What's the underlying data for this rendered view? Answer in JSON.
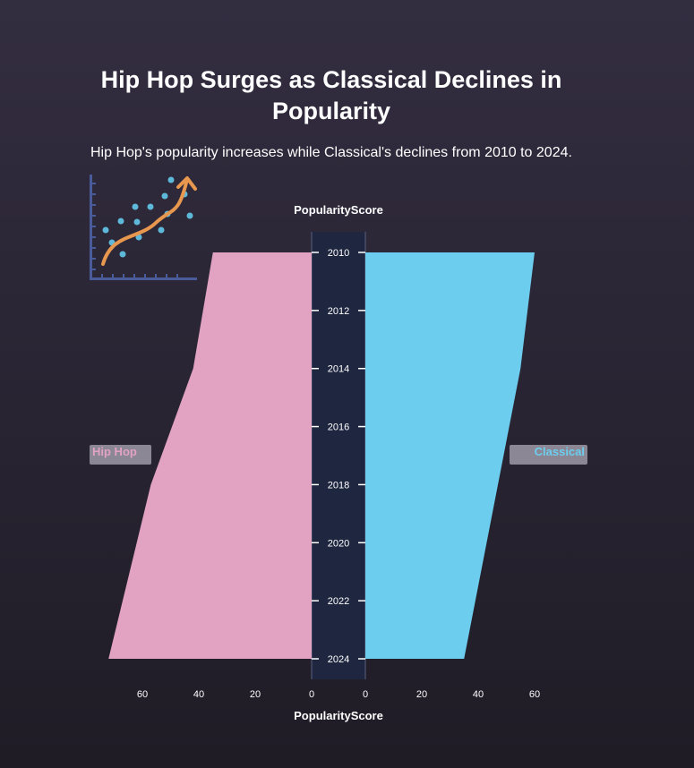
{
  "page": {
    "title": "Hip Hop Surges as Classical Declines in Popularity",
    "subtitle": "Hip Hop's popularity increases while Classical's declines from 2010 to 2024.",
    "icon": "scatter-trend-arrow-icon"
  },
  "colors": {
    "hip_hop": "#e2a2c2",
    "classical": "#6dcdee",
    "center_band": "#1f2640",
    "icon_axes": "#4a5b9a",
    "icon_dots": "#5eb8d9",
    "icon_curve": "#e8974f"
  },
  "chart_data": {
    "type": "area",
    "layout": "mirrored-pyramid",
    "years": [
      "2010",
      "2012",
      "2014",
      "2016",
      "2018",
      "2020",
      "2022",
      "2024"
    ],
    "series": [
      {
        "name": "Hip Hop",
        "side": "left",
        "x": [
          2010,
          2014,
          2018,
          2024
        ],
        "values": [
          35,
          42,
          57,
          72
        ]
      },
      {
        "name": "Classical",
        "side": "right",
        "x": [
          2010,
          2014,
          2024
        ],
        "values": [
          60,
          55,
          35
        ]
      }
    ],
    "xlabel_top": "PopularityScore",
    "xlabel_bottom": "PopularityScore",
    "left_axis_ticks": [
      60,
      40,
      20,
      0
    ],
    "right_axis_ticks": [
      0,
      20,
      40,
      60
    ],
    "xlim": [
      0,
      60
    ],
    "grid": false
  }
}
